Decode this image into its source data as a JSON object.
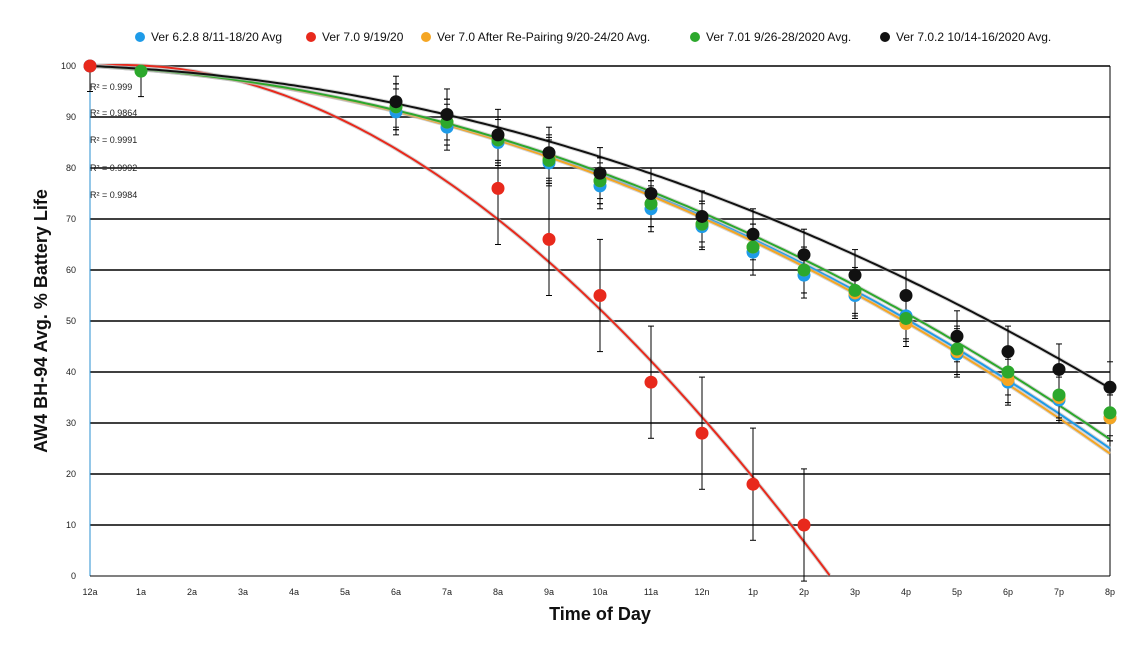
{
  "chart_data": {
    "type": "scatter",
    "title": "",
    "xlabel": "Time of Day",
    "ylabel": "AW4 BH-94 Avg. % Battery Life",
    "ylim": [
      0,
      100
    ],
    "yticks": [
      0,
      10,
      20,
      30,
      40,
      50,
      60,
      70,
      80,
      90,
      100
    ],
    "categories": [
      "12a",
      "1a",
      "2a",
      "3a",
      "4a",
      "5a",
      "6a",
      "7a",
      "8a",
      "9a",
      "10a",
      "11a",
      "12n",
      "1p",
      "2p",
      "3p",
      "4p",
      "5p",
      "6p",
      "7p",
      "8p"
    ],
    "grid": "horizontal",
    "legend_position": "top",
    "r_squared": [
      "R² = 0.999",
      "R² = 0.9864",
      "R² = 0.9991",
      "R² = 0.9992",
      "R² = 0.9984"
    ],
    "series": [
      {
        "name": "Ver 6.2.8 8/11-18/20 Avg",
        "color": "#1e9be8",
        "points": [
          [
            0,
            100
          ],
          [
            6,
            91
          ],
          [
            7,
            88
          ],
          [
            8,
            85
          ],
          [
            9,
            81
          ],
          [
            10,
            76.5
          ],
          [
            11,
            72
          ],
          [
            12,
            68.5
          ],
          [
            13,
            63.5
          ],
          [
            14,
            59
          ],
          [
            15,
            55
          ],
          [
            16,
            51
          ],
          [
            17,
            43.5
          ],
          [
            18,
            38
          ],
          [
            19,
            34.5
          ],
          [
            20,
            31
          ]
        ],
        "errors": [
          [
            0,
            5
          ],
          [
            6,
            4.5
          ],
          [
            7,
            4.5
          ],
          [
            8,
            4.5
          ],
          [
            9,
            4.5
          ],
          [
            10,
            4.5
          ],
          [
            11,
            4.5
          ],
          [
            12,
            4.5
          ],
          [
            13,
            4.5
          ],
          [
            14,
            4.5
          ],
          [
            15,
            4.5
          ],
          [
            16,
            4.5
          ],
          [
            17,
            4.5
          ],
          [
            18,
            4.5
          ],
          [
            19,
            4.5
          ],
          [
            20,
            4.5
          ]
        ],
        "fit": [
          0,
          -0.5,
          -0.1625,
          0
        ]
      },
      {
        "name": "Ver 7.0 9/19/20",
        "color": "#e8291c",
        "points": [
          [
            0,
            100
          ],
          [
            8,
            76
          ],
          [
            9,
            66
          ],
          [
            10,
            55
          ],
          [
            11,
            38
          ],
          [
            12,
            28
          ],
          [
            13,
            18
          ],
          [
            14,
            10
          ]
        ],
        "errors": [
          [
            8,
            11
          ],
          [
            9,
            11
          ],
          [
            10,
            11
          ],
          [
            11,
            11
          ],
          [
            12,
            11
          ],
          [
            13,
            11
          ],
          [
            14,
            11
          ]
        ],
        "fit": [
          100,
          0.7,
          -0.6,
          0.0053
        ]
      },
      {
        "name": "Ver 7.0 After Re-Pairing 9/20-24/20 Avg.",
        "color": "#f5a623",
        "points": [
          [
            6,
            92
          ],
          [
            7,
            89
          ],
          [
            8,
            85.5
          ],
          [
            9,
            82
          ],
          [
            10,
            77.5
          ],
          [
            11,
            73
          ],
          [
            12,
            69
          ],
          [
            13,
            64.5
          ],
          [
            14,
            60
          ],
          [
            15,
            55.5
          ],
          [
            16,
            49.5
          ],
          [
            17,
            44
          ],
          [
            18,
            38.5
          ],
          [
            19,
            35
          ],
          [
            20,
            31
          ]
        ],
        "errors": [
          [
            6,
            4.5
          ],
          [
            7,
            4.5
          ],
          [
            8,
            4.5
          ],
          [
            9,
            4.5
          ],
          [
            10,
            4.5
          ],
          [
            11,
            4.5
          ],
          [
            12,
            4.5
          ],
          [
            13,
            4.5
          ],
          [
            14,
            4.5
          ],
          [
            15,
            4.5
          ],
          [
            16,
            4.5
          ],
          [
            17,
            4.5
          ],
          [
            18,
            4.5
          ],
          [
            19,
            4.5
          ],
          [
            20,
            4.5
          ]
        ],
        "fit": [
          0,
          -0.5,
          -0.165,
          0
        ]
      },
      {
        "name": "Ver 7.01 9/26-28/2020 Avg.",
        "color": "#2ca82c",
        "points": [
          [
            1,
            99
          ],
          [
            6,
            92
          ],
          [
            7,
            89
          ],
          [
            8,
            85.5
          ],
          [
            9,
            81.5
          ],
          [
            10,
            77.5
          ],
          [
            11,
            73
          ],
          [
            12,
            69
          ],
          [
            13,
            64.5
          ],
          [
            14,
            60
          ],
          [
            15,
            56
          ],
          [
            16,
            50.5
          ],
          [
            17,
            44.5
          ],
          [
            18,
            40
          ],
          [
            19,
            35.5
          ],
          [
            20,
            32
          ]
        ],
        "errors": [
          [
            1,
            5
          ],
          [
            6,
            4.5
          ],
          [
            7,
            4.5
          ],
          [
            8,
            4.5
          ],
          [
            9,
            4.5
          ],
          [
            10,
            4.5
          ],
          [
            11,
            4.5
          ],
          [
            12,
            4.5
          ],
          [
            13,
            4.5
          ],
          [
            14,
            4.5
          ],
          [
            15,
            4.5
          ],
          [
            16,
            4.5
          ],
          [
            17,
            4.5
          ],
          [
            18,
            4.5
          ],
          [
            19,
            4.5
          ],
          [
            20,
            4.5
          ]
        ],
        "fit": [
          0,
          -0.5,
          -0.158,
          0
        ]
      },
      {
        "name": "Ver 7.0.2 10/14-16/2020 Avg.",
        "color": "#111111",
        "points": [
          [
            6,
            93
          ],
          [
            7,
            90.5
          ],
          [
            8,
            86.5
          ],
          [
            9,
            83
          ],
          [
            10,
            79
          ],
          [
            11,
            75
          ],
          [
            12,
            70.5
          ],
          [
            13,
            67
          ],
          [
            14,
            63
          ],
          [
            15,
            59
          ],
          [
            16,
            55
          ],
          [
            17,
            47
          ],
          [
            18,
            44
          ],
          [
            19,
            40.5
          ],
          [
            20,
            37
          ]
        ],
        "errors": [
          [
            6,
            5
          ],
          [
            7,
            5
          ],
          [
            8,
            5
          ],
          [
            9,
            5
          ],
          [
            10,
            5
          ],
          [
            11,
            5
          ],
          [
            12,
            5
          ],
          [
            13,
            5
          ],
          [
            14,
            5
          ],
          [
            15,
            5
          ],
          [
            16,
            5
          ],
          [
            17,
            5
          ],
          [
            18,
            5
          ],
          [
            19,
            5
          ],
          [
            20,
            5
          ]
        ],
        "fit": [
          0,
          -0.4,
          -0.138,
          0
        ]
      }
    ]
  }
}
